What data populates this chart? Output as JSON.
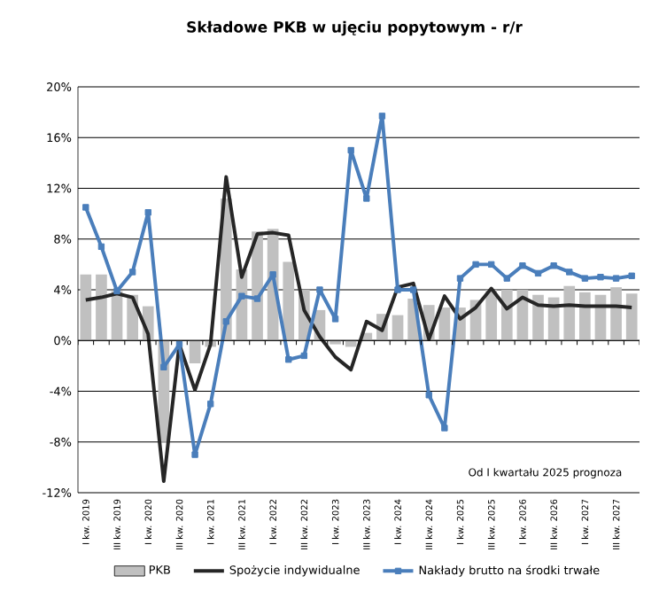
{
  "chart_data": {
    "type": "bar",
    "title": "Składowe PKB w ujęciu popytowym - r/r",
    "categories": [
      "I kw. 2019",
      null,
      "III kw. 2019",
      null,
      "I kw. 2020",
      null,
      "III kw. 2020",
      null,
      "I kw. 2021",
      null,
      "III kw. 2021",
      null,
      "I kw. 2022",
      null,
      "III kw. 2022",
      null,
      "I kw. 2023",
      null,
      "III kw. 2023",
      null,
      "I kw. 2024",
      null,
      "III kw. 2024",
      null,
      "I kw. 2025",
      null,
      "III kw. 2025",
      null,
      "I kw. 2026",
      null,
      "III kw. 2026",
      null,
      "I kw. 2027",
      null,
      "III kw. 2027",
      null
    ],
    "series": [
      {
        "name": "PKB",
        "color": "#c0c0c0",
        "values": [
          5.2,
          5.2,
          3.9,
          3.6,
          2.7,
          -8.0,
          null,
          -1.8,
          -0.5,
          11.2,
          5.6,
          8.6,
          8.8,
          6.2,
          4.0,
          2.4,
          -0.3,
          -0.5,
          0.6,
          2.1,
          2.0,
          3.3,
          2.8,
          2.6,
          2.6,
          3.2,
          4.0,
          4.0,
          4.0,
          3.6,
          3.4,
          4.3,
          3.8,
          3.6,
          4.2,
          3.7
        ]
      },
      {
        "name": "Spożycie indywidualne",
        "type": "line",
        "color": "#262626",
        "marker": "none",
        "values": [
          3.2,
          3.4,
          3.7,
          3.4,
          0.5,
          -11.1,
          -0.3,
          -3.9,
          -0.3,
          12.9,
          5.0,
          8.4,
          8.5,
          8.3,
          2.4,
          0.3,
          -1.3,
          -2.3,
          1.5,
          0.8,
          4.2,
          4.5,
          0.1,
          3.5,
          1.7,
          2.6,
          4.1,
          2.5,
          3.4,
          2.8,
          2.7,
          2.8,
          2.7,
          2.7,
          2.7,
          2.6
        ]
      },
      {
        "name": "Nakłady brutto na środki trwałe",
        "type": "line",
        "color": "#4a7ebb",
        "marker": "square",
        "values": [
          10.5,
          7.4,
          3.9,
          5.4,
          10.1,
          -2.1,
          -0.3,
          -9.0,
          -5.0,
          1.5,
          3.5,
          3.3,
          5.2,
          -1.5,
          -1.2,
          4.0,
          1.7,
          15.0,
          11.2,
          17.7,
          4.0,
          4.0,
          -4.3,
          -6.9,
          4.9,
          6.0,
          6.0,
          4.9,
          5.9,
          5.3,
          5.9,
          5.4,
          4.9,
          5.0,
          4.9,
          5.1
        ]
      }
    ],
    "ylim": [
      -12,
      20
    ],
    "yticks": [
      {
        "value": -12,
        "label": "-12%"
      },
      {
        "value": -8,
        "label": "-8%"
      },
      {
        "value": -4,
        "label": "-4%"
      },
      {
        "value": 0,
        "label": "0%"
      },
      {
        "value": 4,
        "label": "4%"
      },
      {
        "value": 8,
        "label": "8%"
      },
      {
        "value": 12,
        "label": "12%"
      },
      {
        "value": 16,
        "label": "16%"
      },
      {
        "value": 20,
        "label": "20%"
      }
    ],
    "grid": "y",
    "legend": "bottom",
    "annotations": [
      "Od I kwartału 2025 prognoza"
    ]
  }
}
